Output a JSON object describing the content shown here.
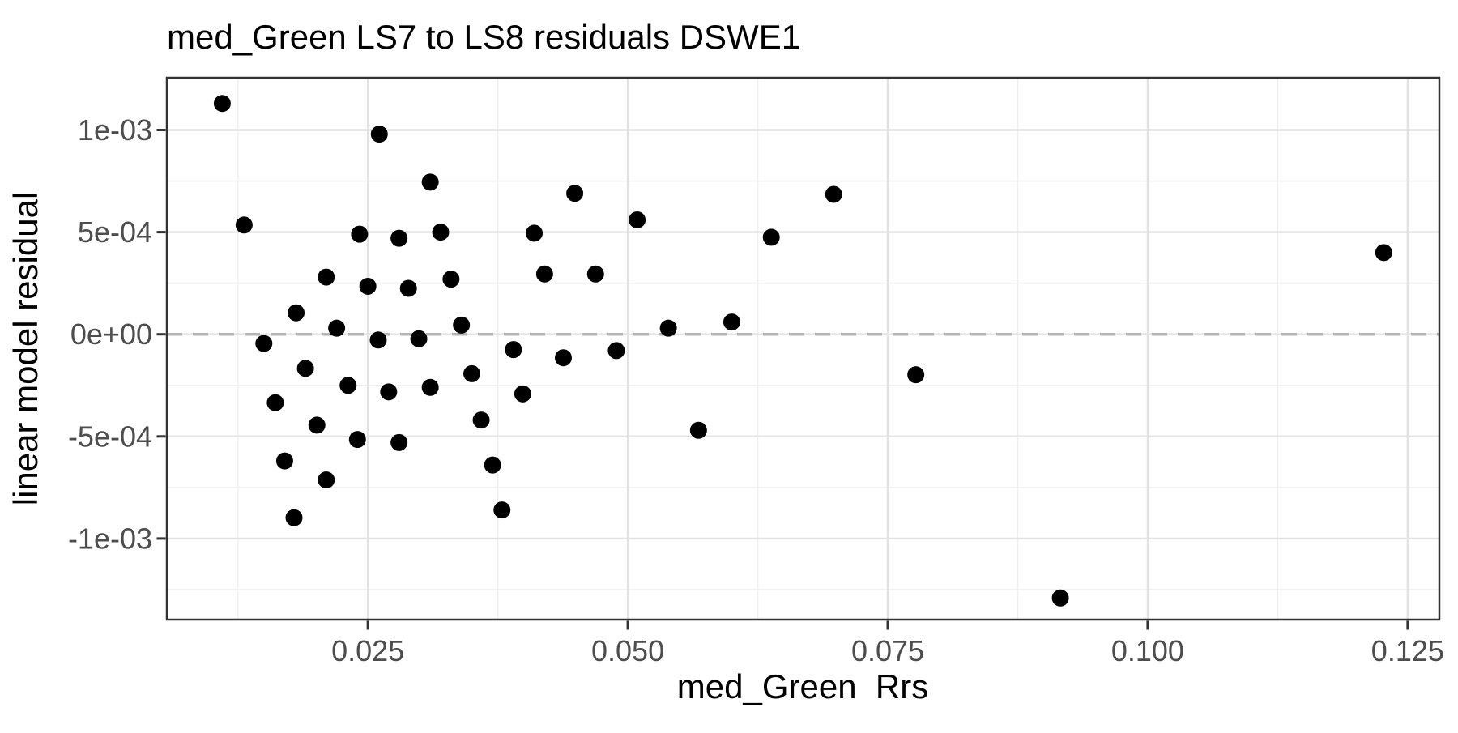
{
  "chart_data": {
    "type": "scatter",
    "title": "med_Green LS7 to LS8 residuals DSWE1",
    "xlabel": "med_Green  Rrs",
    "ylabel": "linear model residual",
    "legend": "none",
    "grid": "major+minor",
    "xlim": [
      0.00567,
      0.12805
    ],
    "ylim": [
      -0.0013969,
      0.0012558
    ],
    "x_ticks": [
      {
        "value": 0.025,
        "label": "0.025"
      },
      {
        "value": 0.05,
        "label": "0.050"
      },
      {
        "value": 0.075,
        "label": "0.075"
      },
      {
        "value": 0.1,
        "label": "0.100"
      },
      {
        "value": 0.125,
        "label": "0.125"
      }
    ],
    "y_ticks": [
      {
        "value": 0.001,
        "label": "1e-03"
      },
      {
        "value": 0.0005,
        "label": "5e-04"
      },
      {
        "value": 0.0,
        "label": "0e+00"
      },
      {
        "value": -0.0005,
        "label": "-5e-04"
      },
      {
        "value": -0.001,
        "label": "-1e-03"
      }
    ],
    "x_minor_gridlines": [
      0.0125,
      0.0375,
      0.0625,
      0.0875,
      0.1125
    ],
    "y_minor_gridlines": [
      0.00075,
      0.00025,
      -0.00025,
      -0.00075,
      -0.00125
    ],
    "reference_line": {
      "y": 0,
      "style": "dashed"
    },
    "points": [
      [
        0.011,
        0.00113
      ],
      [
        0.0261,
        0.00098
      ],
      [
        0.031,
        0.000745
      ],
      [
        0.0449,
        0.00069
      ],
      [
        0.0698,
        0.000685
      ],
      [
        0.0131,
        0.000535
      ],
      [
        0.0242,
        0.00049
      ],
      [
        0.028,
        0.00047
      ],
      [
        0.032,
        0.0005
      ],
      [
        0.041,
        0.000495
      ],
      [
        0.0509,
        0.00056
      ],
      [
        0.0638,
        0.000475
      ],
      [
        0.1227,
        0.0004
      ],
      [
        0.021,
        0.00028
      ],
      [
        0.025,
        0.000235
      ],
      [
        0.0289,
        0.000225
      ],
      [
        0.033,
        0.00027
      ],
      [
        0.042,
        0.000295
      ],
      [
        0.0469,
        0.000295
      ],
      [
        0.0181,
        0.000105
      ],
      [
        0.022,
        3e-05
      ],
      [
        0.034,
        4.5e-05
      ],
      [
        0.0539,
        3e-05
      ],
      [
        0.06,
        6e-05
      ],
      [
        0.015,
        -4.5e-05
      ],
      [
        0.026,
        -2.8e-05
      ],
      [
        0.0299,
        -2.2e-05
      ],
      [
        0.039,
        -7.5e-05
      ],
      [
        0.0438,
        -0.000115
      ],
      [
        0.0489,
        -8e-05
      ],
      [
        0.019,
        -0.000167
      ],
      [
        0.035,
        -0.000193
      ],
      [
        0.0777,
        -0.000198
      ],
      [
        0.0231,
        -0.00025
      ],
      [
        0.027,
        -0.000282
      ],
      [
        0.031,
        -0.00026
      ],
      [
        0.0399,
        -0.000292
      ],
      [
        0.0161,
        -0.000335
      ],
      [
        0.0359,
        -0.00042
      ],
      [
        0.0201,
        -0.000445
      ],
      [
        0.024,
        -0.000515
      ],
      [
        0.028,
        -0.00053
      ],
      [
        0.0568,
        -0.00047
      ],
      [
        0.017,
        -0.00062
      ],
      [
        0.037,
        -0.00064
      ],
      [
        0.021,
        -0.000713
      ],
      [
        0.0379,
        -0.00086
      ],
      [
        0.0179,
        -0.000898
      ],
      [
        0.0916,
        -0.001291
      ]
    ],
    "point_color": "#000000",
    "point_radius": 10.5
  },
  "style": {
    "background": "#ffffff",
    "panel_background": "#ffffff",
    "panel_border_color": "#333333",
    "major_grid_color": "#e2e2e2",
    "minor_grid_color": "#efefef",
    "reference_line_color": "#b3b3b3",
    "tick_color": "#333333",
    "tick_label_color": "#4d4d4d",
    "title_color": "#000000"
  }
}
